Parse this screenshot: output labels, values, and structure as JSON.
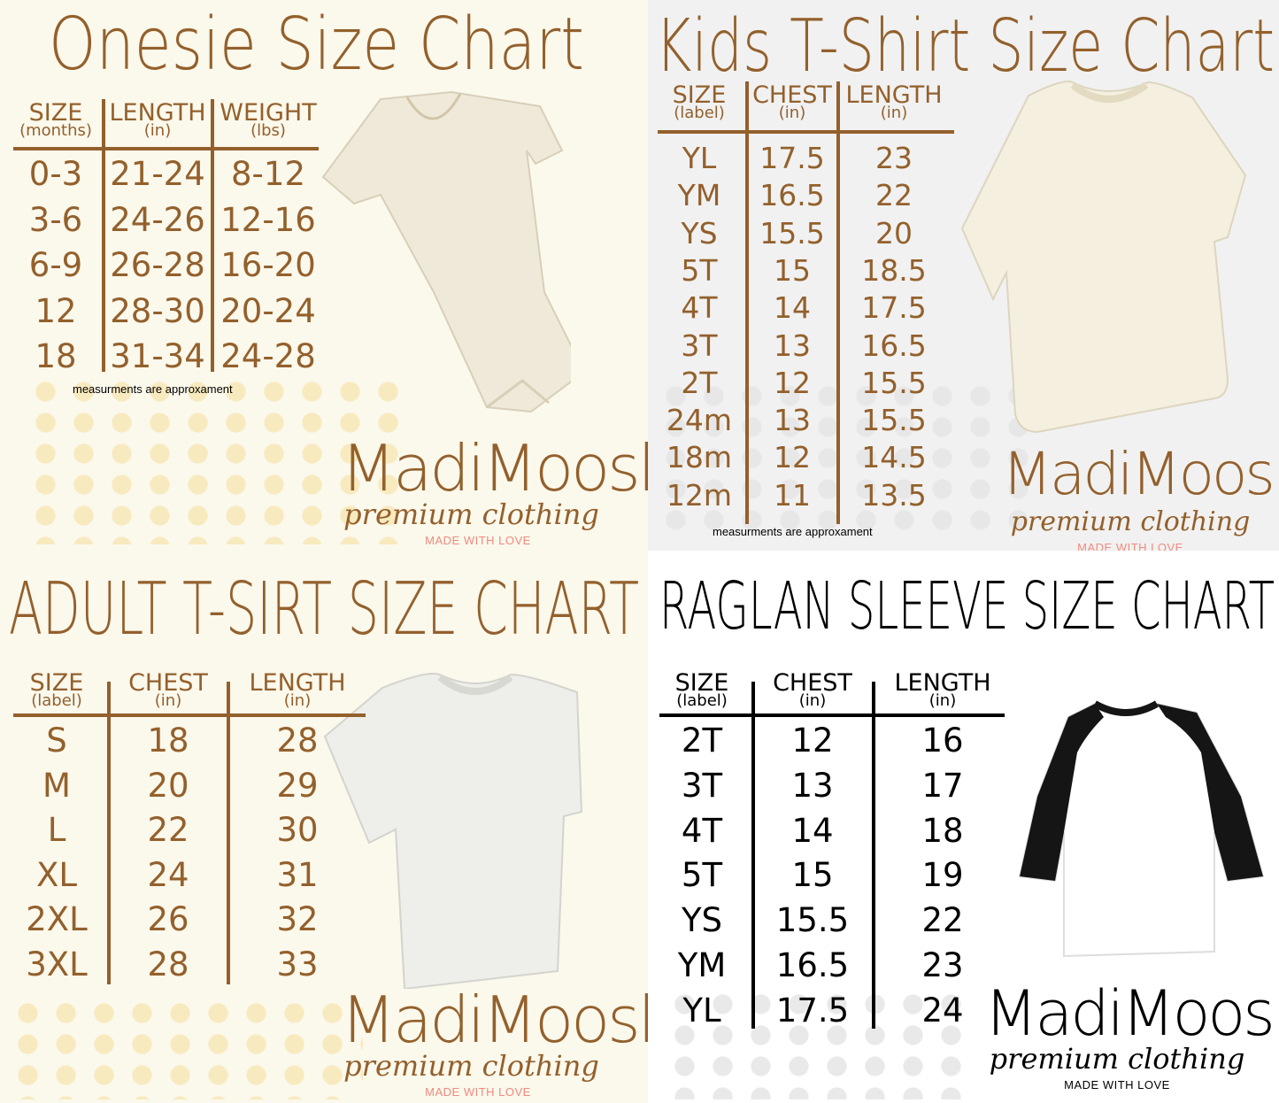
{
  "colors": {
    "brown": "#93602c",
    "pink": "#f08a7e",
    "black": "#000000"
  },
  "onesie": {
    "title": "Onesie Size Chart",
    "headers": [
      {
        "label": "SIZE",
        "unit": "(months)"
      },
      {
        "label": "LENGTH",
        "unit": "(in)"
      },
      {
        "label": "WEIGHT",
        "unit": "(lbs)"
      }
    ],
    "rows": [
      [
        "0-3",
        "21-24",
        "8-12"
      ],
      [
        "3-6",
        "24-26",
        "12-16"
      ],
      [
        "6-9",
        "26-28",
        "16-20"
      ],
      [
        "12",
        "28-30",
        "20-24"
      ],
      [
        "18",
        "31-34",
        "24-28"
      ]
    ],
    "note": "measurments are approxament",
    "brand": {
      "name": "MadiMoosh",
      "tagline": "premium clothing",
      "motto": "MADE WITH LOVE"
    },
    "image_icon": "onesie-image"
  },
  "kids": {
    "title": "Kids T-Shirt Size Chart",
    "headers": [
      {
        "label": "SIZE",
        "unit": "(label)"
      },
      {
        "label": "CHEST",
        "unit": "(in)"
      },
      {
        "label": "LENGTH",
        "unit": "(in)"
      }
    ],
    "rows": [
      [
        "YL",
        "17.5",
        "23"
      ],
      [
        "YM",
        "16.5",
        "22"
      ],
      [
        "YS",
        "15.5",
        "20"
      ],
      [
        "5T",
        "15",
        "18.5"
      ],
      [
        "4T",
        "14",
        "17.5"
      ],
      [
        "3T",
        "13",
        "16.5"
      ],
      [
        "2T",
        "12",
        "15.5"
      ],
      [
        "24m",
        "13",
        "15.5"
      ],
      [
        "18m",
        "12",
        "14.5"
      ],
      [
        "12m",
        "11",
        "13.5"
      ]
    ],
    "note": "measurments are approxament",
    "brand": {
      "name": "MadiMoosh",
      "tagline": "premium clothing",
      "motto": "MADE WITH LOVE"
    },
    "image_icon": "kids-tshirt-image"
  },
  "adult": {
    "title": "ADULT T-SIRT SIZE CHART",
    "headers": [
      {
        "label": "SIZE",
        "unit": "(label)"
      },
      {
        "label": "CHEST",
        "unit": "(in)"
      },
      {
        "label": "LENGTH",
        "unit": "(in)"
      }
    ],
    "rows": [
      [
        "S",
        "18",
        "28"
      ],
      [
        "M",
        "20",
        "29"
      ],
      [
        "L",
        "22",
        "30"
      ],
      [
        "XL",
        "24",
        "31"
      ],
      [
        "2XL",
        "26",
        "32"
      ],
      [
        "3XL",
        "28",
        "33"
      ]
    ],
    "brand": {
      "name": "MadiMoosh",
      "tagline": "premium clothing",
      "motto": "MADE WITH LOVE"
    },
    "image_icon": "adult-tshirt-image"
  },
  "raglan": {
    "title": "RAGLAN SLEEVE SIZE CHART",
    "headers": [
      {
        "label": "SIZE",
        "unit": "(label)"
      },
      {
        "label": "CHEST",
        "unit": "(in)"
      },
      {
        "label": "LENGTH",
        "unit": "(in)"
      }
    ],
    "rows": [
      [
        "2T",
        "12",
        "16"
      ],
      [
        "3T",
        "13",
        "17"
      ],
      [
        "4T",
        "14",
        "18"
      ],
      [
        "5T",
        "15",
        "19"
      ],
      [
        "YS",
        "15.5",
        "22"
      ],
      [
        "YM",
        "16.5",
        "23"
      ],
      [
        "YL",
        "17.5",
        "24"
      ]
    ],
    "brand": {
      "name": "MadiMoosh",
      "tagline": "premium clothing",
      "motto": "MADE WITH LOVE"
    },
    "image_icon": "raglan-shirt-image"
  }
}
